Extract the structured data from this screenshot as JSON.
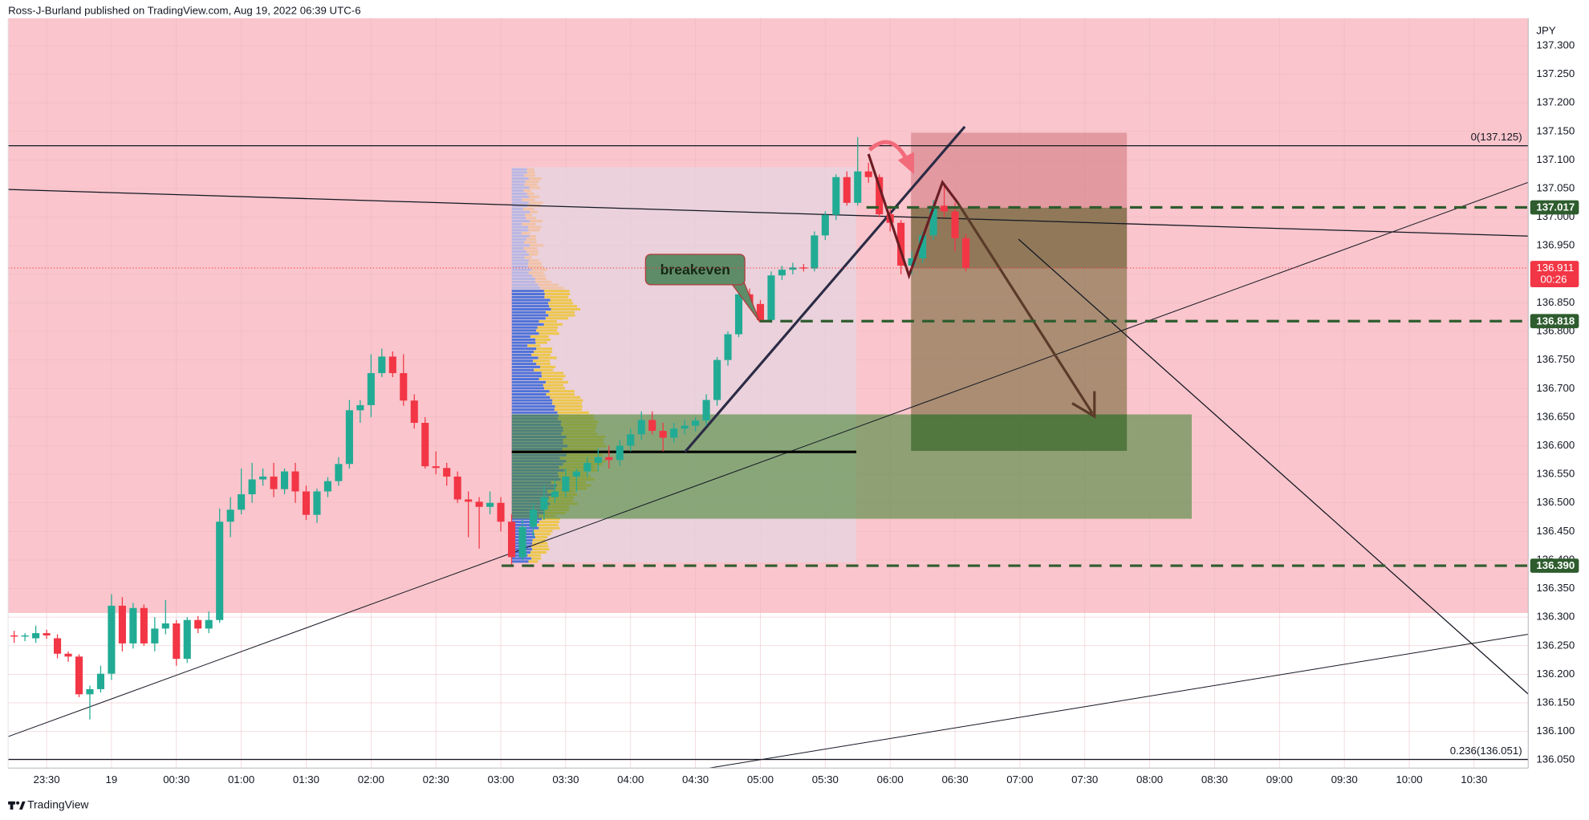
{
  "chart_data": {
    "type": "candlestick",
    "title": "Ross-J-Burland published on TradingView.com, Aug 19, 2022 06:39 UTC-6",
    "currency": "JPY",
    "annotation": "breakeven",
    "footer": "TradingView",
    "up_color": "#22ab94",
    "down_color": "#f23645",
    "open": [
      136.268,
      136.266,
      136.263,
      136.272,
      136.263,
      136.236,
      136.231,
      136.165,
      136.174,
      136.201,
      136.32,
      136.254,
      136.316,
      136.254,
      136.28,
      136.289,
      136.227,
      136.295,
      136.28,
      136.295,
      136.467,
      136.488,
      136.515,
      136.541,
      136.546,
      136.524,
      136.555,
      136.52,
      136.479,
      136.52,
      136.538,
      136.568,
      136.662,
      136.671,
      136.727,
      136.756,
      136.727,
      136.679,
      136.64,
      136.564,
      136.561,
      136.546,
      136.506,
      136.502,
      136.493,
      136.5,
      136.467,
      136.405,
      136.458,
      136.488,
      136.51,
      136.52,
      136.546,
      136.555,
      136.57,
      136.58,
      136.575,
      136.6,
      136.62,
      136.645,
      136.626,
      136.614,
      136.63,
      136.635,
      136.644,
      136.68,
      136.75,
      136.795,
      136.865,
      136.848,
      136.82,
      136.898,
      136.908,
      136.912,
      136.91,
      136.968,
      137.004,
      137.07,
      137.025,
      137.08,
      137.07,
      137.005,
      136.99,
      136.915,
      136.928,
      136.968,
      137.02,
      137.01,
      136.963
    ],
    "high": [
      136.276,
      136.272,
      136.285,
      136.278,
      136.27,
      136.24,
      136.235,
      136.18,
      136.215,
      136.34,
      136.335,
      136.325,
      136.322,
      136.3,
      136.33,
      136.295,
      136.3,
      136.302,
      136.31,
      136.49,
      136.51,
      136.56,
      136.57,
      136.56,
      136.57,
      136.56,
      136.57,
      136.53,
      136.525,
      136.545,
      136.58,
      136.68,
      136.68,
      136.76,
      136.77,
      136.765,
      136.76,
      136.69,
      136.65,
      136.59,
      136.57,
      136.555,
      136.52,
      136.51,
      136.52,
      136.51,
      136.48,
      136.47,
      136.5,
      136.53,
      136.54,
      136.56,
      136.56,
      136.58,
      136.595,
      136.6,
      136.61,
      136.63,
      136.66,
      136.66,
      136.64,
      136.64,
      136.645,
      136.65,
      136.69,
      136.755,
      136.8,
      136.87,
      136.875,
      136.855,
      136.905,
      136.915,
      136.92,
      136.918,
      136.975,
      137.01,
      137.075,
      137.08,
      137.14,
      137.095,
      137.075,
      137.02,
      136.995,
      136.94,
      136.975,
      137.03,
      137.06,
      137.025,
      136.97
    ],
    "low": [
      136.255,
      136.258,
      136.255,
      136.262,
      136.228,
      136.222,
      136.16,
      136.121,
      136.168,
      136.19,
      136.24,
      136.245,
      136.25,
      136.24,
      136.27,
      136.215,
      136.22,
      136.272,
      136.272,
      136.29,
      136.44,
      136.48,
      136.5,
      136.53,
      136.51,
      136.515,
      136.5,
      136.47,
      136.465,
      136.51,
      136.53,
      136.56,
      136.64,
      136.65,
      136.72,
      136.72,
      136.67,
      136.63,
      136.56,
      136.55,
      136.53,
      136.5,
      136.44,
      136.42,
      136.48,
      136.45,
      136.39,
      136.4,
      136.44,
      136.47,
      136.5,
      136.51,
      136.52,
      136.545,
      136.555,
      136.56,
      136.565,
      136.59,
      136.61,
      136.62,
      136.59,
      136.605,
      136.62,
      136.625,
      136.635,
      136.67,
      136.74,
      136.79,
      136.84,
      136.816,
      136.815,
      136.89,
      136.9,
      136.905,
      136.905,
      136.96,
      136.995,
      137.02,
      137.02,
      137.06,
      137.0,
      136.975,
      136.9,
      136.9,
      136.92,
      136.96,
      137.0,
      136.94,
      136.905
    ],
    "close": [
      136.266,
      136.268,
      136.272,
      136.268,
      136.236,
      136.231,
      136.165,
      136.174,
      136.201,
      136.32,
      136.254,
      136.316,
      136.254,
      136.28,
      136.289,
      136.227,
      136.295,
      136.28,
      136.295,
      136.467,
      136.488,
      136.515,
      136.541,
      136.546,
      136.524,
      136.555,
      136.52,
      136.479,
      136.52,
      136.538,
      136.568,
      136.662,
      136.671,
      136.727,
      136.756,
      136.727,
      136.679,
      136.64,
      136.564,
      136.561,
      136.546,
      136.506,
      136.502,
      136.493,
      136.5,
      136.467,
      136.405,
      136.458,
      136.488,
      136.51,
      136.52,
      136.546,
      136.555,
      136.57,
      136.58,
      136.575,
      136.6,
      136.62,
      136.645,
      136.626,
      136.614,
      136.63,
      136.635,
      136.644,
      136.68,
      136.75,
      136.795,
      136.865,
      136.848,
      136.82,
      136.898,
      136.908,
      136.912,
      136.91,
      136.968,
      137.004,
      137.07,
      137.025,
      137.08,
      137.07,
      137.005,
      136.99,
      136.915,
      136.928,
      136.968,
      137.02,
      137.01,
      136.963,
      136.911
    ],
    "xlim": [
      -0.56,
      140
    ],
    "xticks": [
      {
        "value": 3,
        "label": "23:30"
      },
      {
        "value": 9,
        "label": "19"
      },
      {
        "value": 15,
        "label": "00:30"
      },
      {
        "value": 21,
        "label": "01:00"
      },
      {
        "value": 27,
        "label": "01:30"
      },
      {
        "value": 33,
        "label": "02:00"
      },
      {
        "value": 39,
        "label": "02:30"
      },
      {
        "value": 45,
        "label": "03:00"
      },
      {
        "value": 51,
        "label": "03:30"
      },
      {
        "value": 57,
        "label": "04:00"
      },
      {
        "value": 63,
        "label": "04:30"
      },
      {
        "value": 69,
        "label": "05:00"
      },
      {
        "value": 75,
        "label": "05:30"
      },
      {
        "value": 81,
        "label": "06:00"
      },
      {
        "value": 87,
        "label": "06:30"
      },
      {
        "value": 93,
        "label": "07:00"
      },
      {
        "value": 99,
        "label": "07:30"
      },
      {
        "value": 105,
        "label": "08:00"
      },
      {
        "value": 111,
        "label": "08:30"
      },
      {
        "value": 117,
        "label": "09:00"
      },
      {
        "value": 123,
        "label": "09:30"
      },
      {
        "value": 129,
        "label": "10:00"
      },
      {
        "value": 135,
        "label": "10:30"
      }
    ],
    "ylim": [
      136.036,
      137.348
    ],
    "yticks": [
      {
        "value": 136.05,
        "label": "136.050"
      },
      {
        "value": 136.1,
        "label": "136.100"
      },
      {
        "value": 136.15,
        "label": "136.150"
      },
      {
        "value": 136.2,
        "label": "136.200"
      },
      {
        "value": 136.25,
        "label": "136.250"
      },
      {
        "value": 136.3,
        "label": "136.300"
      },
      {
        "value": 136.35,
        "label": "136.350"
      },
      {
        "value": 136.4,
        "label": "136.400"
      },
      {
        "value": 136.45,
        "label": "136.450"
      },
      {
        "value": 136.5,
        "label": "136.500"
      },
      {
        "value": 136.55,
        "label": "136.550"
      },
      {
        "value": 136.6,
        "label": "136.600"
      },
      {
        "value": 136.65,
        "label": "136.650"
      },
      {
        "value": 136.7,
        "label": "136.700"
      },
      {
        "value": 136.75,
        "label": "136.750"
      },
      {
        "value": 136.8,
        "label": "136.800"
      },
      {
        "value": 136.85,
        "label": "136.850"
      },
      {
        "value": 136.9,
        "label": "136.900"
      },
      {
        "value": 136.95,
        "label": "136.950"
      },
      {
        "value": 137,
        "label": "137.000"
      },
      {
        "value": 137.05,
        "label": "137.050"
      },
      {
        "value": 137.1,
        "label": "137.100"
      },
      {
        "value": 137.15,
        "label": "137.150"
      },
      {
        "value": 137.2,
        "label": "137.200"
      },
      {
        "value": 137.25,
        "label": "137.250"
      },
      {
        "value": 137.3,
        "label": "137.300"
      }
    ],
    "grid": true,
    "levels": [
      137.017,
      136.818,
      136.39
    ],
    "level_labels": [
      "137.017",
      "136.818",
      "136.390"
    ],
    "level_color": "#2e5c2e",
    "last_price": 136.911,
    "countdown": "00:26",
    "fib_levels": [
      {
        "value": 137.125,
        "label": "0(137.125)"
      },
      {
        "value": 136.051,
        "label": "0.236(136.051)"
      }
    ]
  }
}
